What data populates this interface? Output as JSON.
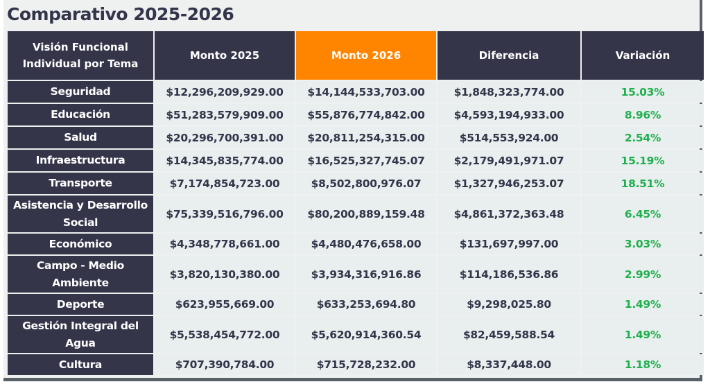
{
  "title": "Comparativo 2025-2026",
  "colors": {
    "header_dark": "#343549",
    "header_accent": "#ff8400",
    "positive": "#1fb04e"
  },
  "headers": [
    "Visión Funcional Individual por Tema",
    "Monto 2025",
    "Monto 2026",
    "Diferencia",
    "Variación"
  ],
  "rows": [
    {
      "tema": "Seguridad",
      "monto_2025": "$12,296,209,929.00",
      "monto_2026": "$14,144,533,703.00",
      "diferencia": "$1,848,323,774.00",
      "variacion": "15.03%"
    },
    {
      "tema": "Educación",
      "monto_2025": "$51,283,579,909.00",
      "monto_2026": "$55,876,774,842.00",
      "diferencia": "$4,593,194,933.00",
      "variacion": "8.96%"
    },
    {
      "tema": "Salud",
      "monto_2025": "$20,296,700,391.00",
      "monto_2026": "$20,811,254,315.00",
      "diferencia": "$514,553,924.00",
      "variacion": "2.54%"
    },
    {
      "tema": "Infraestructura",
      "monto_2025": "$14,345,835,774.00",
      "monto_2026": "$16,525,327,745.07",
      "diferencia": "$2,179,491,971.07",
      "variacion": "15.19%"
    },
    {
      "tema": "Transporte",
      "monto_2025": "$7,174,854,723.00",
      "monto_2026": "$8,502,800,976.07",
      "diferencia": "$1,327,946,253.07",
      "variacion": "18.51%"
    },
    {
      "tema": "Asistencia y Desarrollo Social",
      "monto_2025": "$75,339,516,796.00",
      "monto_2026": "$80,200,889,159.48",
      "diferencia": "$4,861,372,363.48",
      "variacion": "6.45%"
    },
    {
      "tema": "Económico",
      "monto_2025": "$4,348,778,661.00",
      "monto_2026": "$4,480,476,658.00",
      "diferencia": "$131,697,997.00",
      "variacion": "3.03%"
    },
    {
      "tema": "Campo - Medio Ambiente",
      "monto_2025": "$3,820,130,380.00",
      "monto_2026": "$3,934,316,916.86",
      "diferencia": "$114,186,536.86",
      "variacion": "2.99%"
    },
    {
      "tema": "Deporte",
      "monto_2025": "$623,955,669.00",
      "monto_2026": "$633,253,694.80",
      "diferencia": "$9,298,025.80",
      "variacion": "1.49%"
    },
    {
      "tema": "Gestión Integral del Agua",
      "monto_2025": "$5,538,454,772.00",
      "monto_2026": "$5,620,914,360.54",
      "diferencia": "$82,459,588.54",
      "variacion": "1.49%"
    },
    {
      "tema": "Cultura",
      "monto_2025": "$707,390,784.00",
      "monto_2026": "$715,728,232.00",
      "diferencia": "$8,337,448.00",
      "variacion": "1.18%"
    }
  ]
}
